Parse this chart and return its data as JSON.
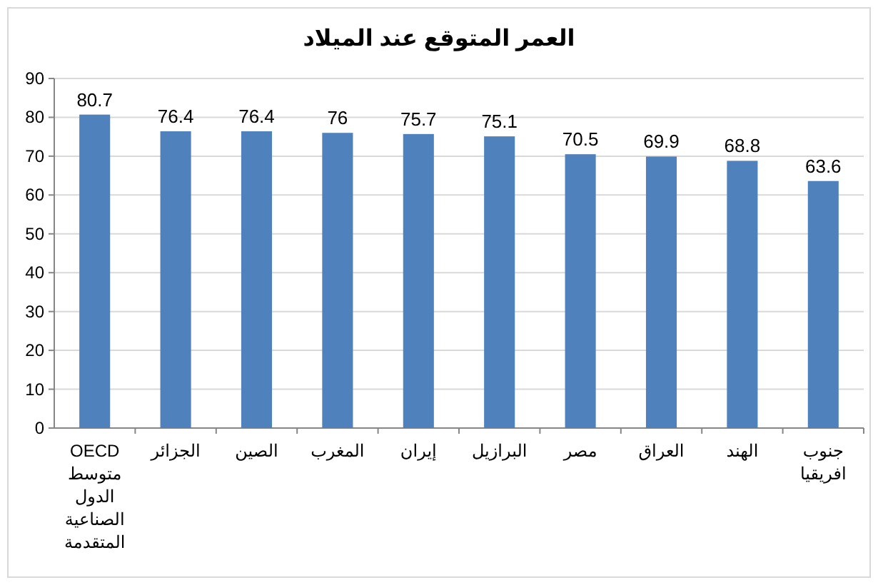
{
  "chart_data": {
    "type": "bar",
    "title": "العمر المتوقع عند الميلاد",
    "categories": [
      "OECD متوسط الدول الصناعية المتقدمة",
      "الجزائر",
      "الصين",
      "المغرب",
      "إيران",
      "البرازيل",
      "مصر",
      "العراق",
      "الهند",
      "جنوب افريقيا"
    ],
    "values": [
      80.7,
      76.4,
      76.4,
      76,
      75.7,
      75.1,
      70.5,
      69.9,
      68.8,
      63.6
    ],
    "color": "#4f81bd",
    "ylim": [
      0,
      90
    ],
    "yticks": [
      0,
      10,
      20,
      30,
      40,
      50,
      60,
      70,
      80,
      90
    ],
    "grid": "y",
    "data_labels": true
  }
}
